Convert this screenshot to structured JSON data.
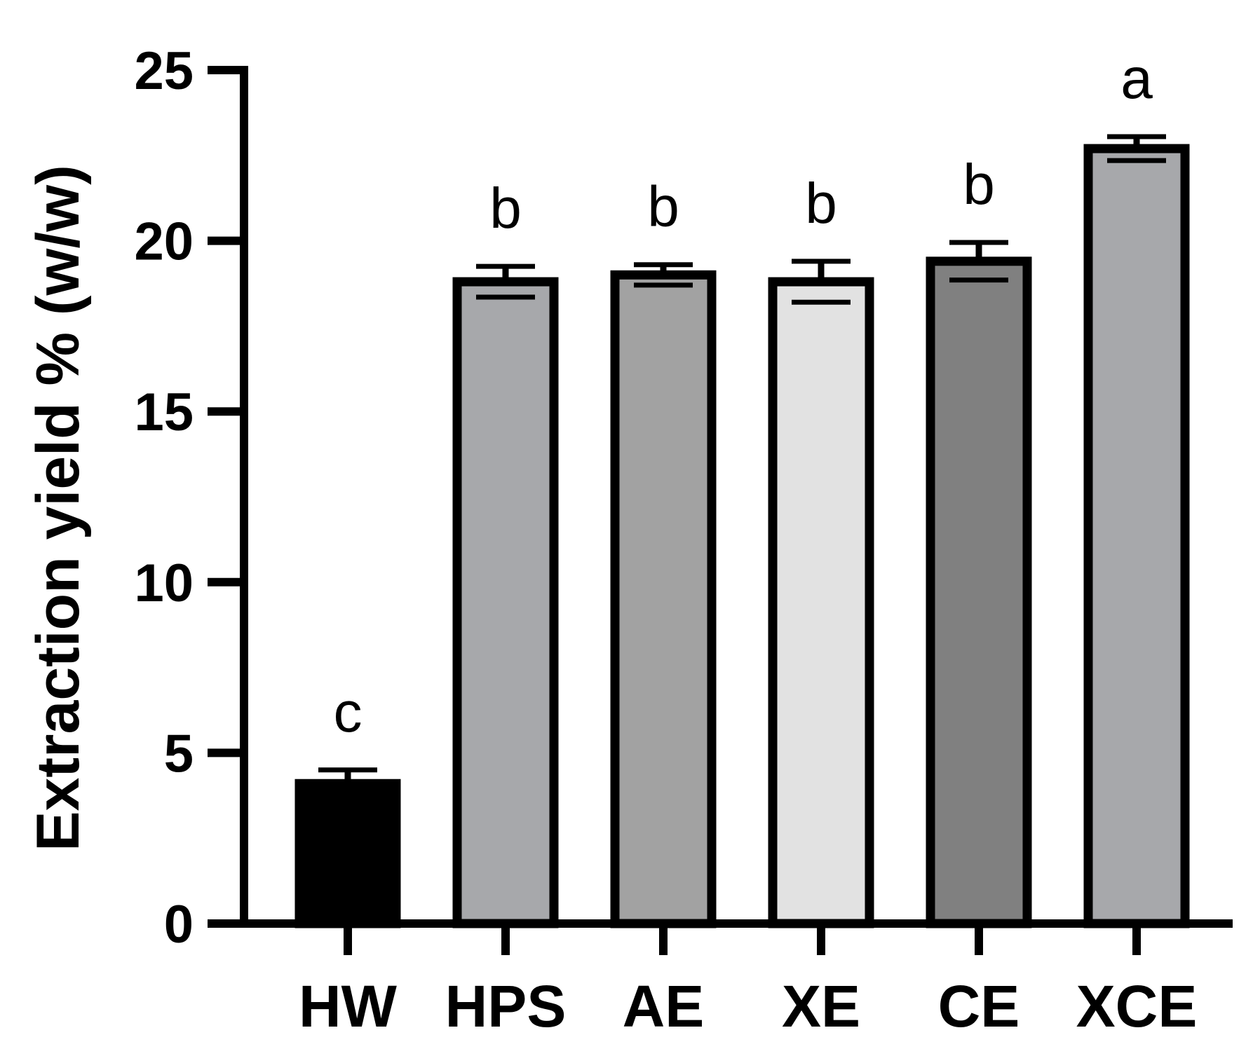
{
  "chart_data": {
    "type": "bar",
    "title": "",
    "xlabel": "",
    "ylabel": "Extraction yield % (w/w)",
    "ylim": [
      0,
      25
    ],
    "yticks": [
      0,
      5,
      10,
      15,
      20,
      25
    ],
    "grid": false,
    "categories": [
      "HW",
      "HPS",
      "AE",
      "XE",
      "CE",
      "XCE"
    ],
    "values": [
      4.1,
      18.8,
      19.0,
      18.8,
      19.4,
      22.7
    ],
    "errors": [
      0.4,
      0.45,
      0.3,
      0.6,
      0.55,
      0.35
    ],
    "significance": [
      "c",
      "b",
      "b",
      "b",
      "b",
      "a"
    ],
    "colors": [
      "#000000",
      "#a7a8ab",
      "#a2a2a2",
      "#e2e2e2",
      "#808080",
      "#a7a8ab"
    ]
  }
}
